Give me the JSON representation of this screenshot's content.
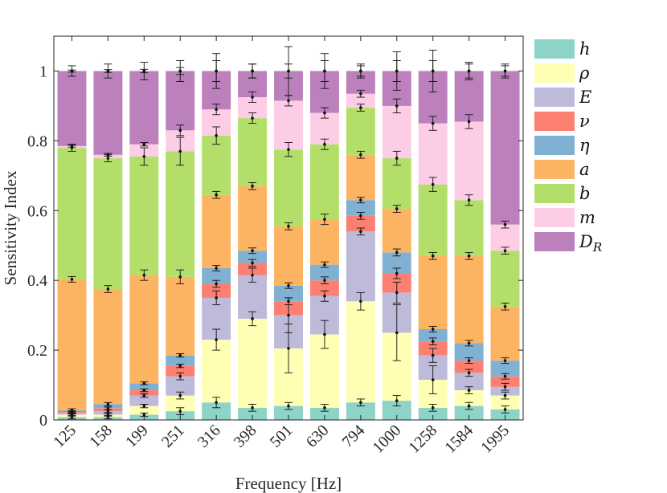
{
  "chart_data": {
    "type": "bar",
    "stacked": true,
    "title": "",
    "xlabel": "Frequency [Hz]",
    "ylabel": "Sensitivity Index",
    "ylim": [
      0,
      1.1
    ],
    "yticks": [
      0,
      0.2,
      0.4,
      0.6,
      0.8,
      1
    ],
    "ytick_labels": [
      "0",
      "0.2",
      "0.4",
      "0.6",
      "0.8",
      "1"
    ],
    "grid": false,
    "legend_position": "outside-right",
    "categories": [
      "125",
      "158",
      "199",
      "251",
      "316",
      "398",
      "501",
      "630",
      "794",
      "1000",
      "1258",
      "1584",
      "1995"
    ],
    "series": [
      {
        "name": "h",
        "color": "#8dd3c7",
        "values": [
          0.008,
          0.008,
          0.015,
          0.025,
          0.05,
          0.035,
          0.04,
          0.035,
          0.05,
          0.055,
          0.035,
          0.04,
          0.03
        ]
      },
      {
        "name": "ρ",
        "color": "#ffffb3",
        "values": [
          0.007,
          0.007,
          0.025,
          0.045,
          0.18,
          0.255,
          0.165,
          0.21,
          0.29,
          0.195,
          0.08,
          0.045,
          0.04
        ]
      },
      {
        "name": "E",
        "color": "#bebada",
        "values": [
          0.005,
          0.01,
          0.03,
          0.055,
          0.12,
          0.125,
          0.095,
          0.11,
          0.2,
          0.115,
          0.07,
          0.05,
          0.025
        ]
      },
      {
        "name": "ν",
        "color": "#fb8072",
        "values": [
          0.003,
          0.008,
          0.015,
          0.03,
          0.04,
          0.035,
          0.04,
          0.045,
          0.045,
          0.055,
          0.04,
          0.035,
          0.03
        ]
      },
      {
        "name": "η",
        "color": "#80b1d3",
        "values": [
          0.005,
          0.012,
          0.02,
          0.03,
          0.045,
          0.035,
          0.045,
          0.045,
          0.045,
          0.06,
          0.035,
          0.05,
          0.045
        ]
      },
      {
        "name": "a",
        "color": "#fdb462",
        "values": [
          0.375,
          0.33,
          0.31,
          0.225,
          0.21,
          0.185,
          0.17,
          0.13,
          0.13,
          0.125,
          0.21,
          0.25,
          0.155
        ]
      },
      {
        "name": "b",
        "color": "#b3de69",
        "values": [
          0.377,
          0.375,
          0.34,
          0.36,
          0.17,
          0.195,
          0.22,
          0.215,
          0.135,
          0.145,
          0.205,
          0.16,
          0.16
        ]
      },
      {
        "name": "m",
        "color": "#fccde5",
        "values": [
          0.005,
          0.01,
          0.035,
          0.06,
          0.075,
          0.06,
          0.14,
          0.09,
          0.04,
          0.15,
          0.175,
          0.225,
          0.075
        ]
      },
      {
        "name": "D_R",
        "color": "#bc80bd",
        "values": [
          0.215,
          0.24,
          0.21,
          0.17,
          0.11,
          0.075,
          0.085,
          0.12,
          0.065,
          0.1,
          0.15,
          0.145,
          0.44
        ]
      }
    ],
    "error_bar_halfwidths": [
      [
        0.005,
        0.005,
        0.005,
        0.01,
        0.015,
        0.01,
        0.01,
        0.01,
        0.01,
        0.015,
        0.01,
        0.01,
        0.01
      ],
      [
        0.004,
        0.004,
        0.005,
        0.01,
        0.03,
        0.02,
        0.07,
        0.04,
        0.025,
        0.08,
        0.04,
        0.01,
        0.01
      ],
      [
        0.003,
        0.004,
        0.005,
        0.01,
        0.02,
        0.02,
        0.05,
        0.015,
        0.01,
        0.03,
        0.02,
        0.01,
        0.01
      ],
      [
        0.003,
        0.004,
        0.004,
        0.005,
        0.01,
        0.01,
        0.01,
        0.01,
        0.01,
        0.015,
        0.01,
        0.008,
        0.008
      ],
      [
        0.004,
        0.005,
        0.004,
        0.005,
        0.008,
        0.008,
        0.008,
        0.008,
        0.008,
        0.01,
        0.008,
        0.008,
        0.008
      ],
      [
        0.008,
        0.01,
        0.015,
        0.02,
        0.01,
        0.01,
        0.01,
        0.015,
        0.01,
        0.01,
        0.01,
        0.01,
        0.01
      ],
      [
        0.01,
        0.01,
        0.025,
        0.04,
        0.025,
        0.015,
        0.02,
        0.015,
        0.01,
        0.02,
        0.02,
        0.015,
        0.01
      ],
      [
        0.003,
        0.004,
        0.005,
        0.015,
        0.015,
        0.015,
        0.015,
        0.015,
        0.01,
        0.02,
        0.02,
        0.02,
        0.01
      ],
      [
        0.003,
        0.004,
        0.005,
        0.01,
        0.05,
        0.02,
        0.07,
        0.05,
        0.015,
        0.055,
        0.06,
        0.025,
        0.015
      ]
    ],
    "top_error_bar_halfwidths": [
      0.015,
      0.02,
      0.025,
      0.03,
      0.03,
      0.02,
      0.02,
      0.03,
      0.02,
      0.03,
      0.03,
      0.02,
      0.02
    ]
  }
}
